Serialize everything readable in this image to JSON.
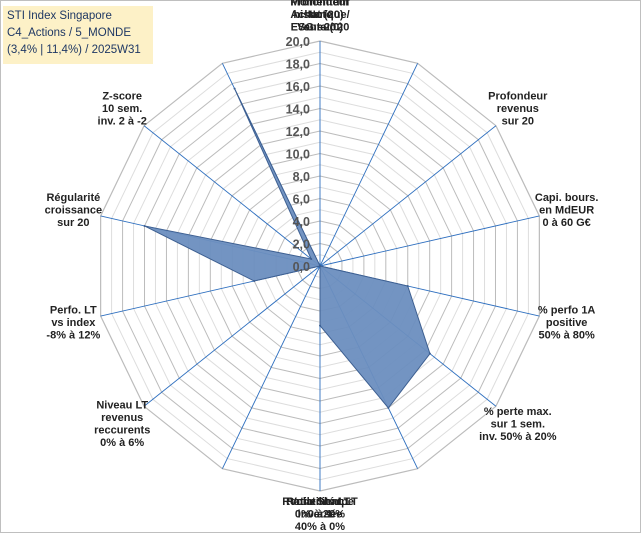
{
  "title_box": {
    "line1": "STI Index Singapore",
    "line2": "C4_Actions / 5_MONDE",
    "line3": "(3,4% | 11,4%) / 2025W31"
  },
  "colors": {
    "fill": "#6b8ebf",
    "stroke": "#3d5f91",
    "grid": "#c8c8c8",
    "spoke": "#2e6fbf"
  },
  "chart_data": {
    "type": "radar",
    "rmin": 0,
    "rmax": 20,
    "tick_step": 2,
    "tick_labels": [
      "0,0",
      "2,0",
      "4,0",
      "6,0",
      "8,0",
      "10,0",
      "12,0",
      "14,0",
      "16,0",
      "18,0",
      "20,0"
    ],
    "axes": [
      {
        "label": [
          "Note",
          "ESG sur 20"
        ],
        "value": 0
      },
      {
        "label": [
          "Profondeur",
          "historique",
          "sur 20"
        ],
        "value": 0
      },
      {
        "label": [
          "Profondeur",
          "revenus",
          "sur 20"
        ],
        "value": 0
      },
      {
        "label": [
          "Capi. bours.",
          "en MdEUR",
          "0 à 60 G€"
        ],
        "value": 0
      },
      {
        "label": [
          "% perfo 1A",
          "positive",
          "50% à 80%"
        ],
        "value": 8
      },
      {
        "label": [
          "% perte max.",
          "sur 1 sem.",
          "inv. 50% à 20%"
        ],
        "value": 12.5
      },
      {
        "label": [
          "Volatilité LT",
          "inversée",
          "40% à 0%"
        ],
        "value": 14
      },
      {
        "label": [
          "Ratio Sharpe",
          "0 à 1"
        ],
        "value": 5.3
      },
      {
        "label": [
          "Rendement LT",
          "0% à 20%"
        ],
        "value": 0
      },
      {
        "label": [
          "Niveau LT",
          "revenus",
          "reccurents",
          "0% à 6%"
        ],
        "value": 0
      },
      {
        "label": [
          "Perfo. LT",
          "vs index",
          "-8% à 12%"
        ],
        "value": 6
      },
      {
        "label": [
          "Régularité",
          "croissance",
          "sur 20"
        ],
        "value": 16
      },
      {
        "label": [
          "Z-score",
          "10 sem.",
          "inv. 2 à -2"
        ],
        "value": 1
      },
      {
        "label": [
          "Momentum",
          "Achat (20) /",
          "Vente (0)"
        ],
        "value": 17.5
      }
    ]
  }
}
